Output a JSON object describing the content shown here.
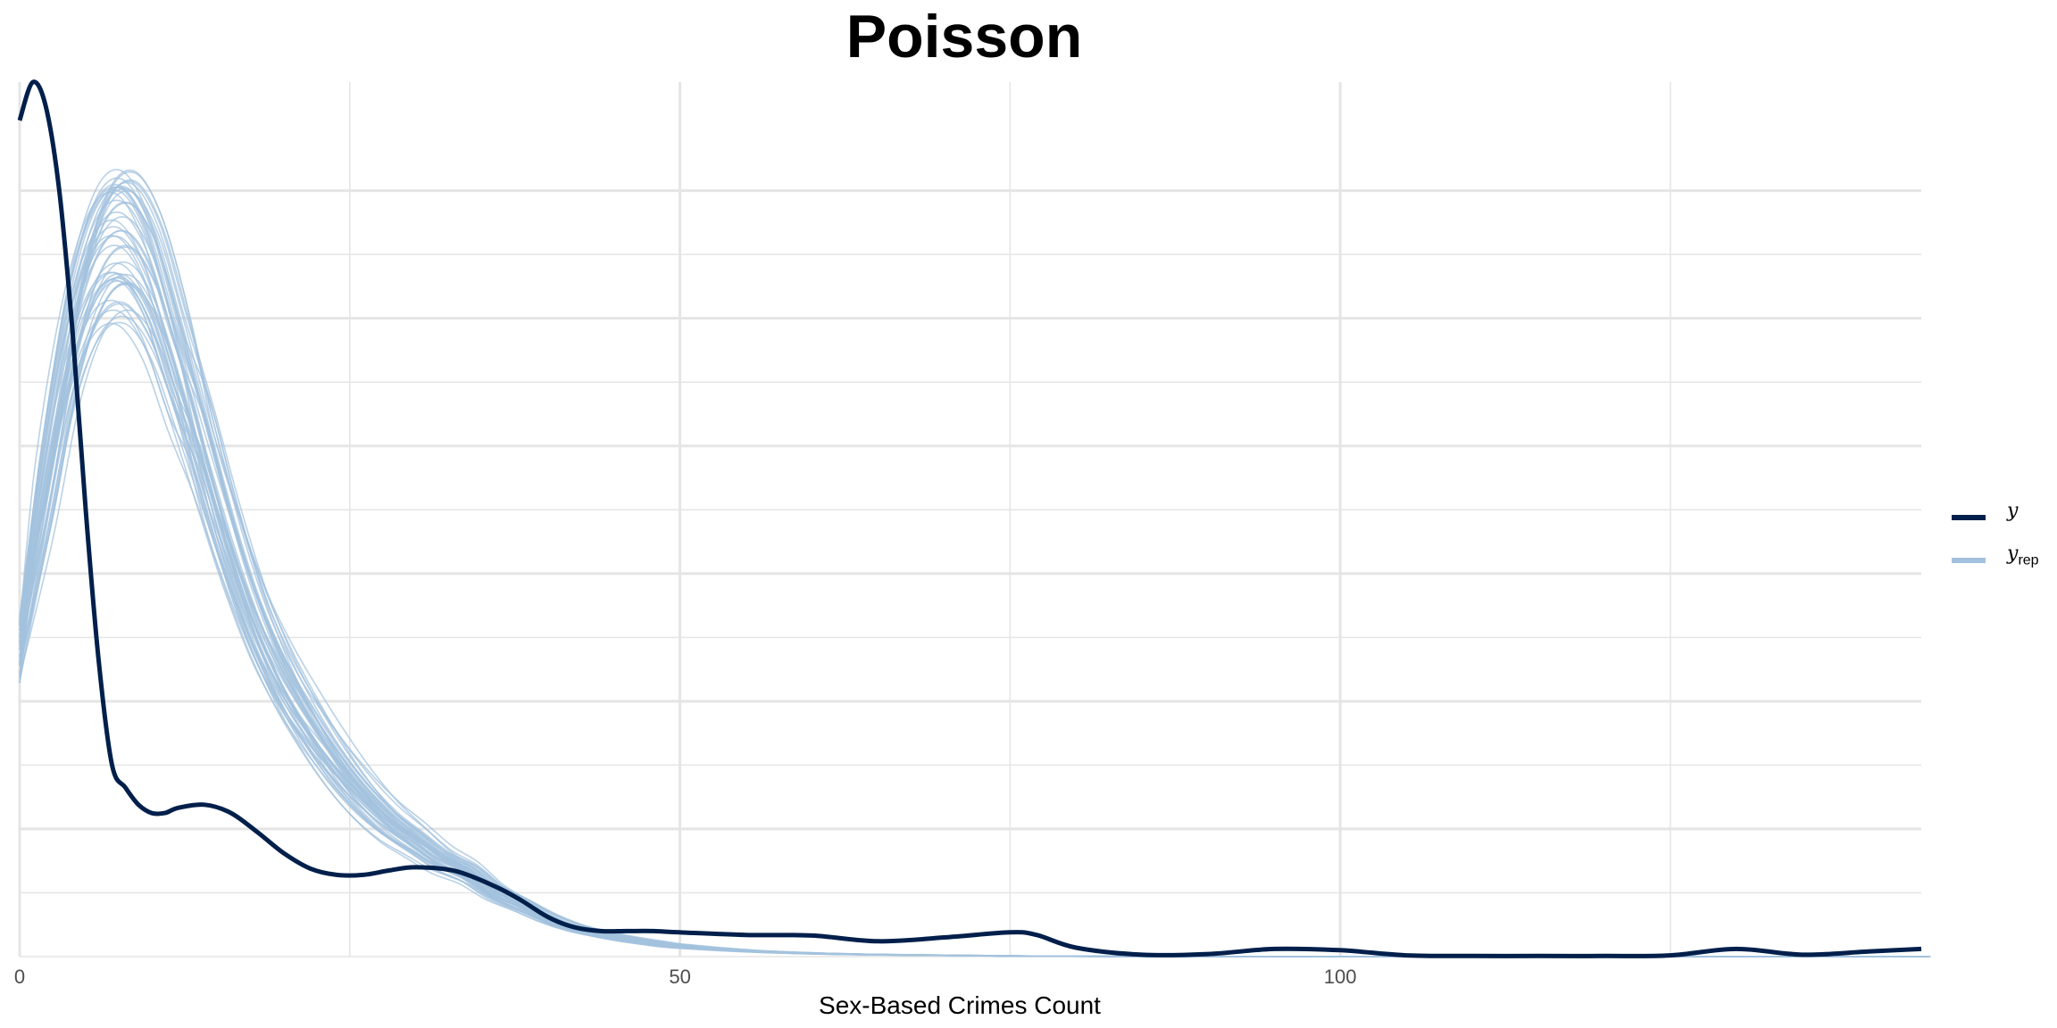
{
  "chart_data": {
    "type": "line",
    "title": "Poisson",
    "xlabel": "Sex-Based Crimes Count",
    "ylabel": "",
    "xlim": [
      0,
      144
    ],
    "ylim": [
      0,
      0.137
    ],
    "x_ticks": [
      0,
      50,
      100
    ],
    "x_tick_labels": [
      "0",
      "50",
      "100"
    ],
    "y_gridlines": [
      0.02,
      0.04,
      0.06,
      0.08,
      0.1,
      0.12
    ],
    "grid": true,
    "legend_position": "right",
    "legend": [
      {
        "key": "y",
        "label": "y",
        "sub": ""
      },
      {
        "key": "yrep",
        "label": "y",
        "sub": "rep"
      }
    ],
    "colors": {
      "y": "#011f4b",
      "yrep": "#a3c1dd",
      "grid": "#e5e5e5"
    },
    "yrep_draws": 50,
    "yrep_typical": {
      "x": [
        0,
        2,
        4,
        6,
        8,
        10,
        12,
        14,
        16,
        18,
        20,
        22,
        24,
        26,
        28,
        30,
        32,
        34,
        36,
        38,
        40,
        42,
        44,
        46,
        48,
        50,
        55,
        60,
        65,
        70,
        75,
        80,
        90,
        100,
        110,
        120,
        130,
        144
      ],
      "y": [
        0.048,
        0.072,
        0.095,
        0.108,
        0.111,
        0.105,
        0.092,
        0.078,
        0.064,
        0.052,
        0.043,
        0.036,
        0.03,
        0.025,
        0.021,
        0.018,
        0.015,
        0.013,
        0.01,
        0.008,
        0.006,
        0.0045,
        0.0035,
        0.0027,
        0.0021,
        0.0016,
        0.0009,
        0.0005,
        0.0003,
        0.0002,
        0.0001,
        5e-05,
        0,
        0,
        0,
        0,
        0,
        0
      ]
    },
    "series": [
      {
        "name": "y",
        "x": [
          0,
          1,
          2,
          3,
          4,
          5,
          6,
          7,
          8,
          9,
          10,
          11,
          12,
          14,
          16,
          18,
          20,
          22,
          24,
          26,
          28,
          30,
          33,
          36,
          38,
          40,
          42,
          44,
          46,
          48,
          50,
          55,
          60,
          65,
          70,
          75,
          77,
          80,
          85,
          90,
          95,
          100,
          105,
          110,
          115,
          120,
          125,
          130,
          135,
          140,
          144
        ],
        "y": [
          0.131,
          0.137,
          0.133,
          0.12,
          0.098,
          0.07,
          0.046,
          0.03,
          0.0265,
          0.0238,
          0.0225,
          0.0225,
          0.0233,
          0.0238,
          0.0225,
          0.0195,
          0.0162,
          0.0138,
          0.0128,
          0.0128,
          0.0135,
          0.014,
          0.0134,
          0.011,
          0.0088,
          0.0062,
          0.0046,
          0.004,
          0.004,
          0.004,
          0.0038,
          0.0034,
          0.0033,
          0.0024,
          0.003,
          0.0038,
          0.0034,
          0.0014,
          0.0003,
          0.0004,
          0.0012,
          0.001,
          0.0002,
          0.0001,
          0.0001,
          0.0001,
          0.0002,
          0.0012,
          0.0003,
          0.0008,
          0.0012
        ]
      }
    ]
  }
}
